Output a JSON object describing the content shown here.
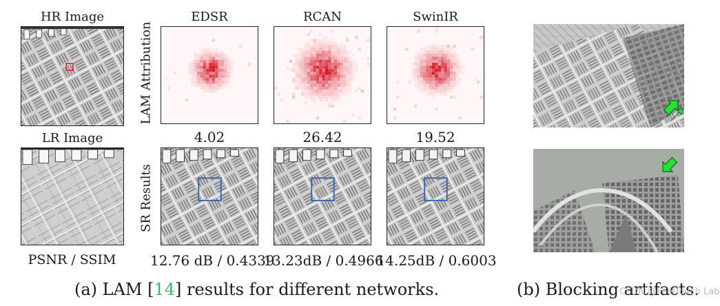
{
  "left_column": {
    "hr_label": "HR Image",
    "lr_label": "LR Image",
    "metric_label": "PSNR / SSIM"
  },
  "row_labels": {
    "lam": "LAM Attribution",
    "sr": "SR Results"
  },
  "models": [
    {
      "name": "EDSR",
      "lam_value": "4.02",
      "result": "12.76 dB / 0.4339"
    },
    {
      "name": "RCAN",
      "lam_value": "26.42",
      "result": "13.23dB / 0.4966"
    },
    {
      "name": "SwinIR",
      "lam_value": "19.52",
      "result": "14.25dB / 0.6003"
    }
  ],
  "captions": {
    "a_prefix": "(a) LAM [",
    "a_cite": "14",
    "a_suffix": "] results for different networks.",
    "b": "(b) Blocking artifacts."
  },
  "watermark": "CSDN @FeelTouch Labs",
  "colors": {
    "heat": "#d7192a",
    "box": "#3a66b5",
    "hr_box": "#d7192a",
    "arrow": "#27e03a",
    "cite": "#3cb371"
  }
}
